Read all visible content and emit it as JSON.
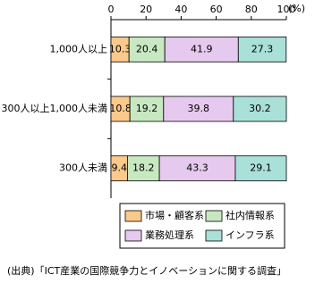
{
  "chart_data": {
    "type": "stacked-barh",
    "categories": [
      "1,000人以上",
      "300人以上1,000人未満",
      "300人未満"
    ],
    "series": [
      {
        "name": "市場・顧客系",
        "color": "#fac98c",
        "values": [
          10.3,
          10.8,
          9.4
        ]
      },
      {
        "name": "社内情報系",
        "color": "#c8e8c2",
        "values": [
          20.4,
          19.2,
          18.2
        ]
      },
      {
        "name": "業務処理系",
        "color": "#e6c9ee",
        "values": [
          41.9,
          39.8,
          43.3
        ]
      },
      {
        "name": "インフラ系",
        "color": "#a9e1d9",
        "values": [
          27.3,
          30.2,
          29.1
        ]
      }
    ],
    "xlim": [
      0,
      100
    ],
    "xticks": [
      0,
      20,
      40,
      60,
      80,
      100
    ],
    "x_unit": "(%)",
    "source": "(出典)「ICT産業の国際競争力とイノベーションに関する調査」"
  }
}
